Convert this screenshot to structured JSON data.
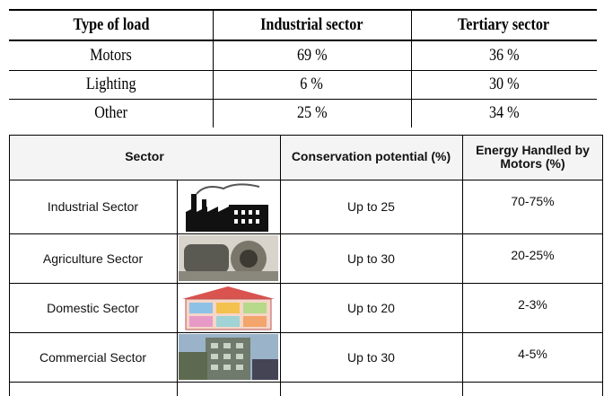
{
  "load_table": {
    "header": [
      "Type of load",
      "Industrial sector",
      "Tertiary sector"
    ],
    "rows": [
      [
        "Motors",
        "69 %",
        "36 %"
      ],
      [
        "Lighting",
        "6 %",
        "30 %"
      ],
      [
        "Other",
        "25 %",
        "34 %"
      ]
    ]
  },
  "sector_table": {
    "header": [
      "Sector",
      "Conservation potential (%)",
      "Energy Handled by Motors (%)"
    ],
    "rows": [
      [
        "Industrial Sector",
        "Up to 25",
        "70-75%"
      ],
      [
        "Agriculture Sector",
        "Up to 30",
        "20-25%"
      ],
      [
        "Domestic Sector",
        "Up to 20",
        "2-3%"
      ],
      [
        "Commercial Sector",
        "Up to 30",
        "4-5%"
      ]
    ]
  }
}
